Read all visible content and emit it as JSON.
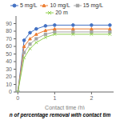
{
  "chart_data": {
    "type": "line",
    "xlabel": "Contact time (h)",
    "annotation": "n of percentage removal with contact tim",
    "x": [
      0,
      0.17,
      0.33,
      0.5,
      0.75,
      1.0,
      1.5,
      2.0,
      2.5
    ],
    "series": [
      {
        "name": "5 mg/L",
        "color": "#4472C4",
        "marker": "circle",
        "values": [
          0,
          68,
          78,
          83,
          87,
          88,
          88,
          88,
          88
        ]
      },
      {
        "name": "10 mg/L",
        "color": "#ED7D31",
        "marker": "triangle",
        "values": [
          0,
          60,
          70,
          76,
          81,
          83,
          83,
          83,
          83
        ]
      },
      {
        "name": "15 mg/L",
        "color": "#A5A5A5",
        "marker": "square",
        "values": [
          0,
          52,
          63,
          70,
          76,
          79,
          79,
          79,
          79
        ]
      },
      {
        "name": "20 m",
        "color": "#92D050",
        "marker": "cross",
        "values": [
          0,
          45,
          57,
          65,
          72,
          76,
          76,
          76,
          76
        ]
      }
    ],
    "xlim": [
      -0.05,
      2.6
    ],
    "ylim": [
      0,
      100
    ],
    "xticks": [
      0,
      1,
      2
    ],
    "yticks": [
      0,
      10,
      20,
      30,
      40,
      50,
      60,
      70,
      80,
      90
    ],
    "legend": "top",
    "grid": false
  }
}
